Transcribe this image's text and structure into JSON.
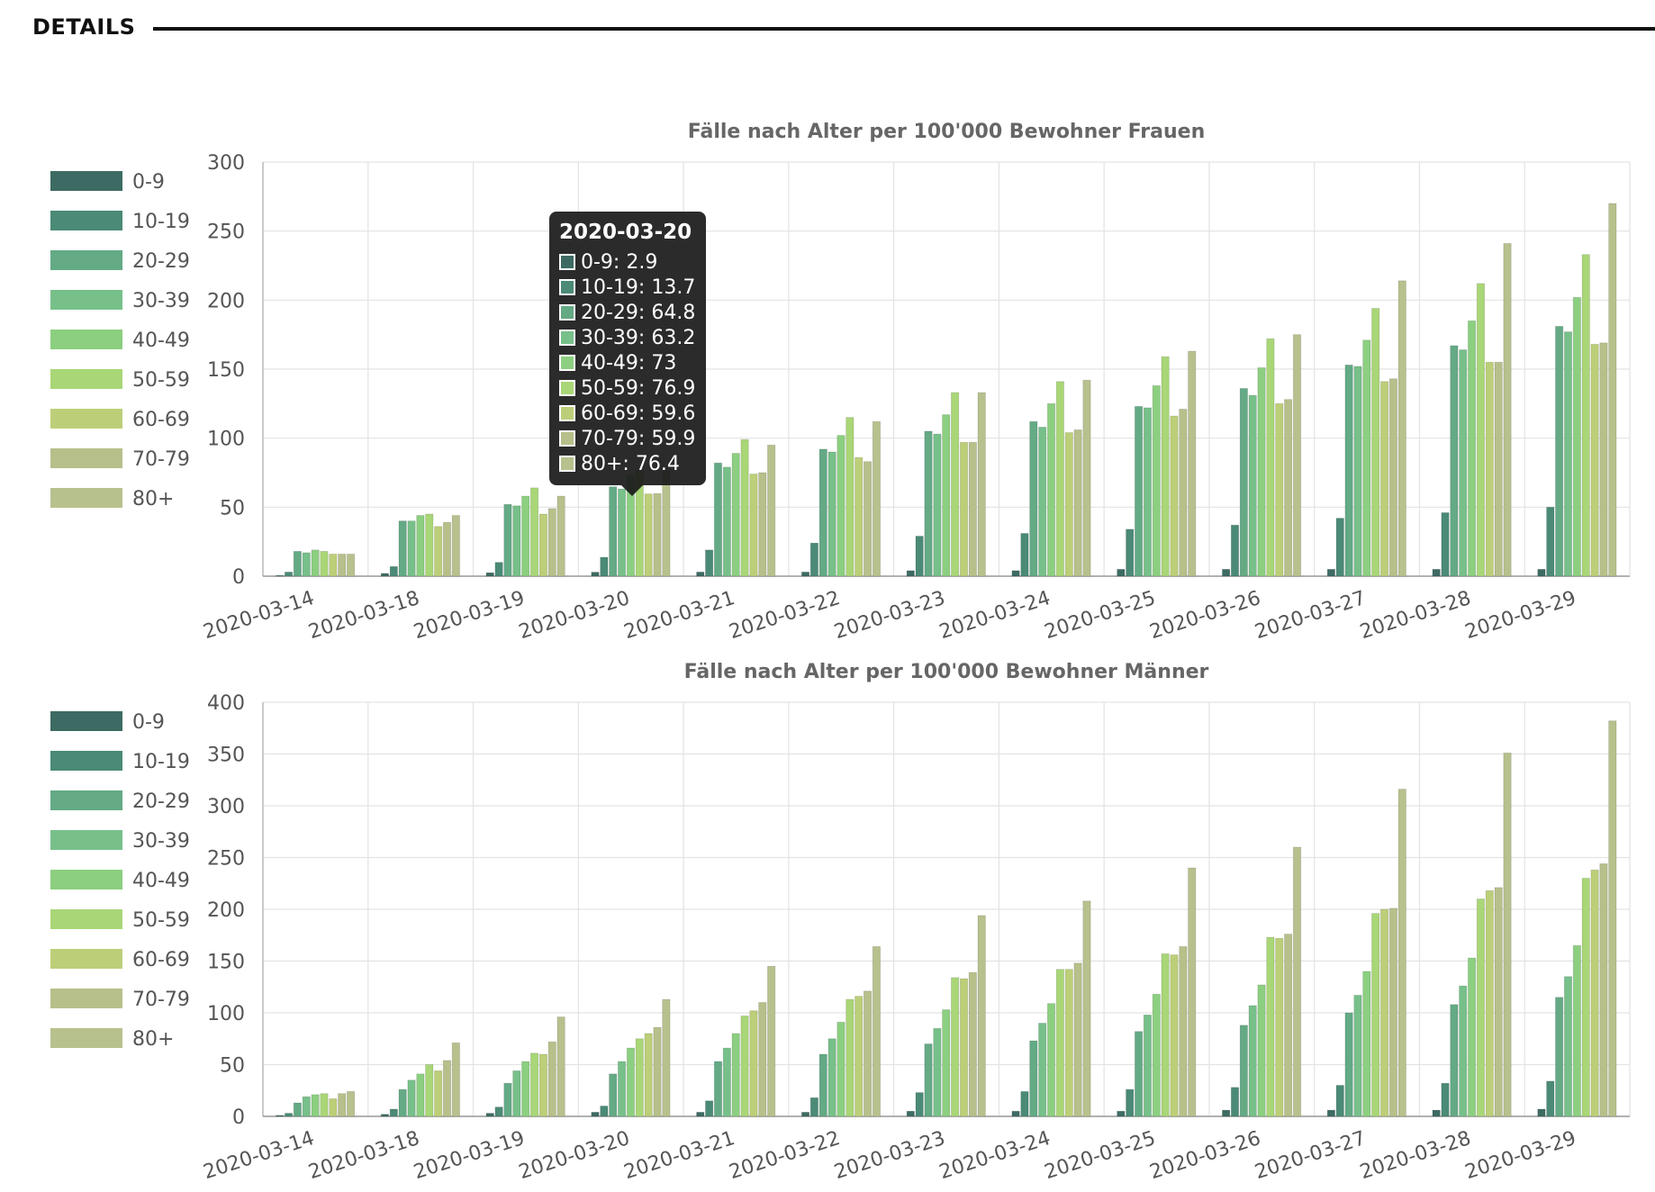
{
  "header": {
    "title": "DETAILS"
  },
  "colors": [
    "#3d6b63",
    "#4a8a76",
    "#63aa85",
    "#77c08a",
    "#8ccf80",
    "#a9d677",
    "#bccf78",
    "#b7c08a",
    "#b7c18d"
  ],
  "chart_data": [
    {
      "type": "bar",
      "title": "Fälle nach Alter per 100'000 Bewohner Frauen",
      "categories": [
        "2020-03-14",
        "2020-03-18",
        "2020-03-19",
        "2020-03-20",
        "2020-03-21",
        "2020-03-22",
        "2020-03-23",
        "2020-03-24",
        "2020-03-25",
        "2020-03-26",
        "2020-03-27",
        "2020-03-28",
        "2020-03-29"
      ],
      "ylim": [
        0,
        300
      ],
      "yticks": [
        0,
        50,
        100,
        150,
        200,
        250,
        300
      ],
      "grid": true,
      "legend_position": "left",
      "series": [
        {
          "name": "0-9",
          "values": [
            0.5,
            2,
            2.5,
            2.9,
            3,
            3,
            4,
            4,
            5,
            5,
            5,
            5,
            5
          ]
        },
        {
          "name": "10-19",
          "values": [
            3,
            7,
            10,
            13.7,
            19,
            24,
            29,
            31,
            34,
            37,
            42,
            46,
            50
          ]
        },
        {
          "name": "20-29",
          "values": [
            18,
            40,
            52,
            64.8,
            82,
            92,
            105,
            112,
            123,
            136,
            153,
            167,
            181
          ]
        },
        {
          "name": "30-39",
          "values": [
            17,
            40,
            51,
            63.2,
            79,
            90,
            103,
            108,
            122,
            131,
            152,
            164,
            177
          ]
        },
        {
          "name": "40-49",
          "values": [
            19,
            44,
            58,
            73,
            89,
            102,
            117,
            125,
            138,
            151,
            171,
            185,
            202
          ]
        },
        {
          "name": "50-59",
          "values": [
            18,
            45,
            64,
            76.9,
            99,
            115,
            133,
            141,
            159,
            172,
            194,
            212,
            233
          ]
        },
        {
          "name": "60-69",
          "values": [
            16,
            36,
            45,
            59.6,
            74,
            86,
            97,
            104,
            116,
            125,
            141,
            155,
            168
          ]
        },
        {
          "name": "70-79",
          "values": [
            16,
            39,
            49,
            59.9,
            75,
            83,
            97,
            106,
            121,
            128,
            143,
            155,
            169
          ]
        },
        {
          "name": "80+",
          "values": [
            16,
            44,
            58,
            76.4,
            95,
            112,
            133,
            142,
            163,
            175,
            214,
            241,
            270
          ]
        }
      ],
      "tooltip": {
        "title": "2020-03-20",
        "rows": [
          "0-9: 2.9",
          "10-19: 13.7",
          "20-29: 64.8",
          "30-39: 63.2",
          "40-49: 73",
          "50-59: 76.9",
          "60-69: 59.6",
          "70-79: 59.9",
          "80+: 76.4"
        ]
      }
    },
    {
      "type": "bar",
      "title": "Fälle nach Alter per 100'000 Bewohner Männer",
      "categories": [
        "2020-03-14",
        "2020-03-18",
        "2020-03-19",
        "2020-03-20",
        "2020-03-21",
        "2020-03-22",
        "2020-03-23",
        "2020-03-24",
        "2020-03-25",
        "2020-03-26",
        "2020-03-27",
        "2020-03-28",
        "2020-03-29"
      ],
      "ylim": [
        0,
        400
      ],
      "yticks": [
        0,
        50,
        100,
        150,
        200,
        250,
        300,
        350,
        400
      ],
      "grid": true,
      "legend_position": "left",
      "series": [
        {
          "name": "0-9",
          "values": [
            1,
            2,
            3,
            4,
            4,
            4,
            5,
            5,
            5,
            6,
            6,
            6,
            7
          ]
        },
        {
          "name": "10-19",
          "values": [
            3,
            7,
            9,
            10,
            15,
            18,
            23,
            24,
            26,
            28,
            30,
            32,
            34
          ]
        },
        {
          "name": "20-29",
          "values": [
            13,
            26,
            32,
            41,
            53,
            60,
            70,
            73,
            82,
            88,
            100,
            108,
            115
          ]
        },
        {
          "name": "30-39",
          "values": [
            19,
            35,
            44,
            53,
            66,
            75,
            85,
            90,
            98,
            107,
            117,
            126,
            135
          ]
        },
        {
          "name": "40-49",
          "values": [
            21,
            41,
            53,
            66,
            80,
            91,
            103,
            109,
            118,
            127,
            140,
            153,
            165
          ]
        },
        {
          "name": "50-59",
          "values": [
            22,
            50,
            61,
            75,
            97,
            113,
            134,
            142,
            157,
            173,
            196,
            210,
            230
          ]
        },
        {
          "name": "60-69",
          "values": [
            17,
            44,
            60,
            80,
            102,
            116,
            133,
            142,
            156,
            172,
            200,
            218,
            238
          ]
        },
        {
          "name": "70-79",
          "values": [
            22,
            54,
            72,
            86,
            110,
            121,
            139,
            148,
            164,
            176,
            201,
            221,
            244
          ]
        },
        {
          "name": "80+",
          "values": [
            24,
            71,
            96,
            113,
            145,
            164,
            194,
            208,
            240,
            260,
            316,
            351,
            382
          ]
        }
      ]
    }
  ]
}
